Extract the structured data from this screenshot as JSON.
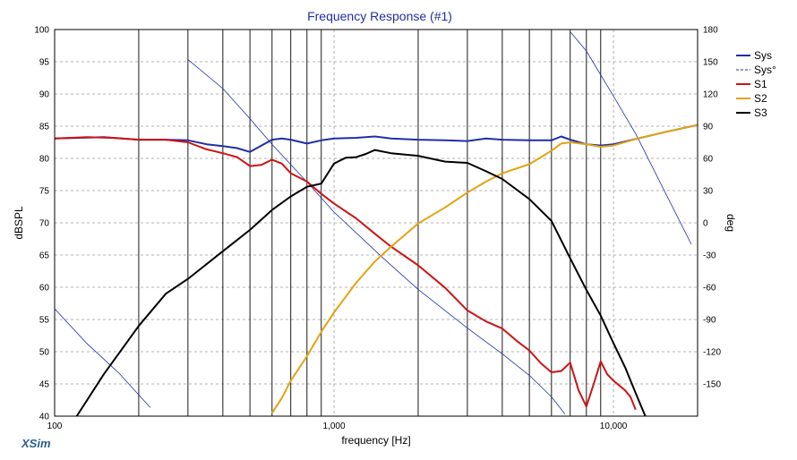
{
  "app": {
    "brand": "XSim"
  },
  "chart_data": {
    "type": "line",
    "title": "Frequency Response (#1)",
    "xlabel": "frequency [Hz]",
    "ylabel": "dBSPL",
    "y2label": "deg",
    "xscale": "log",
    "xlim": [
      100,
      20000
    ],
    "ylim": [
      40,
      100
    ],
    "y2lim": [
      -180,
      180
    ],
    "xticks": [
      100,
      1000,
      10000
    ],
    "xtick_labels": [
      "100",
      "1,000",
      "10,000"
    ],
    "yticks": [
      100,
      95,
      90,
      85,
      80,
      75,
      70,
      65,
      60,
      55,
      50,
      45,
      40
    ],
    "y2ticks": [
      180,
      150,
      120,
      90,
      60,
      30,
      0,
      -30,
      -60,
      -90,
      -120,
      -150
    ],
    "grid": true,
    "legend_position": "top-right",
    "markers_hz": [
      200,
      300,
      400,
      500,
      600,
      700,
      800,
      900,
      2000,
      3000,
      4000,
      5000,
      6000,
      7000,
      8000,
      9000
    ],
    "series": [
      {
        "name": "Sys",
        "axis": "left",
        "color": "#1f2fa8",
        "style": "solid",
        "x": [
          100,
          150,
          200,
          250,
          300,
          350,
          400,
          450,
          500,
          550,
          600,
          650,
          700,
          800,
          900,
          1000,
          1200,
          1400,
          1600,
          2000,
          2500,
          3000,
          3500,
          4000,
          5000,
          6000,
          6500,
          7000,
          8000,
          9000,
          10000,
          12000,
          15000,
          20000
        ],
        "y": [
          83.1,
          83.3,
          82.9,
          82.9,
          82.8,
          82.2,
          81.9,
          81.6,
          81.0,
          82.0,
          82.9,
          83.1,
          82.9,
          82.3,
          82.8,
          83.1,
          83.2,
          83.4,
          83.1,
          82.9,
          82.8,
          82.7,
          83.1,
          82.9,
          82.8,
          82.8,
          83.4,
          82.9,
          82.2,
          82.0,
          82.2,
          83.0,
          84.0,
          85.2
        ]
      },
      {
        "name": "Sys°",
        "axis": "right",
        "color": "#1f2fa8",
        "style": "dashed",
        "x": [
          100,
          130,
          170,
          220,
          300,
          400,
          500,
          600,
          800,
          1000,
          1500,
          2000,
          3000,
          4000,
          5000,
          6000,
          6700,
          7000,
          8000,
          10000,
          12000,
          15000,
          19000
        ],
        "y": [
          -80,
          -112,
          -140,
          -172,
          152,
          125,
          97,
          73,
          38,
          10,
          -33,
          -62,
          -98,
          -122,
          -142,
          -162,
          -178,
          178,
          160,
          118,
          83,
          33,
          -20
        ]
      },
      {
        "name": "S1",
        "axis": "left",
        "color": "#cc1414",
        "style": "solid",
        "x": [
          100,
          130,
          160,
          200,
          250,
          300,
          350,
          400,
          450,
          500,
          550,
          600,
          650,
          700,
          800,
          900,
          1000,
          1200,
          1400,
          1600,
          2000,
          2500,
          3000,
          3500,
          4000,
          4500,
          5000,
          5500,
          6000,
          6500,
          7000,
          7500,
          8000,
          8500,
          9000,
          9500,
          10000,
          11000,
          11500,
          12000
        ],
        "y": [
          83.1,
          83.3,
          83.2,
          82.9,
          82.9,
          82.5,
          81.4,
          80.8,
          80.2,
          78.8,
          79.0,
          79.8,
          79.2,
          77.7,
          76.4,
          74.5,
          73.0,
          70.7,
          68.3,
          66.3,
          63.4,
          59.9,
          56.4,
          54.7,
          53.6,
          51.7,
          50.2,
          48.2,
          46.8,
          47.0,
          48.3,
          44.0,
          41.5,
          45.0,
          48.5,
          46.5,
          45.5,
          44.0,
          43.0,
          41.0
        ]
      },
      {
        "name": "S2",
        "axis": "left",
        "color": "#e2a312",
        "style": "solid",
        "x": [
          600,
          650,
          700,
          800,
          900,
          1000,
          1200,
          1400,
          1600,
          2000,
          2500,
          3000,
          3500,
          4000,
          5000,
          5500,
          6000,
          6500,
          7000,
          8000,
          9000,
          10000,
          12000,
          15000,
          20000
        ],
        "y": [
          40.5,
          42.8,
          45.5,
          49.3,
          53.1,
          56.1,
          60.7,
          64.0,
          66.3,
          69.9,
          72.4,
          74.7,
          76.4,
          77.7,
          79.1,
          80.2,
          81.2,
          82.3,
          82.5,
          82.2,
          81.8,
          82.0,
          83.0,
          84.0,
          85.2
        ]
      },
      {
        "name": "S3",
        "axis": "left",
        "color": "#000000",
        "style": "solid",
        "x": [
          120,
          150,
          200,
          250,
          300,
          400,
          500,
          600,
          700,
          800,
          900,
          1000,
          1100,
          1200,
          1300,
          1400,
          1600,
          2000,
          2500,
          3000,
          3500,
          4000,
          5000,
          6000,
          7000,
          8000,
          9000,
          10000,
          11000,
          12000,
          13000
        ],
        "y": [
          40.0,
          46.5,
          54.0,
          59.0,
          61.3,
          65.6,
          68.9,
          72.0,
          74.1,
          75.6,
          76.1,
          79.2,
          80.1,
          80.2,
          80.7,
          81.3,
          80.8,
          80.4,
          79.5,
          79.3,
          78.0,
          76.8,
          73.7,
          70.3,
          64.5,
          59.6,
          55.6,
          51.3,
          47.6,
          43.6,
          40.0
        ]
      }
    ]
  }
}
